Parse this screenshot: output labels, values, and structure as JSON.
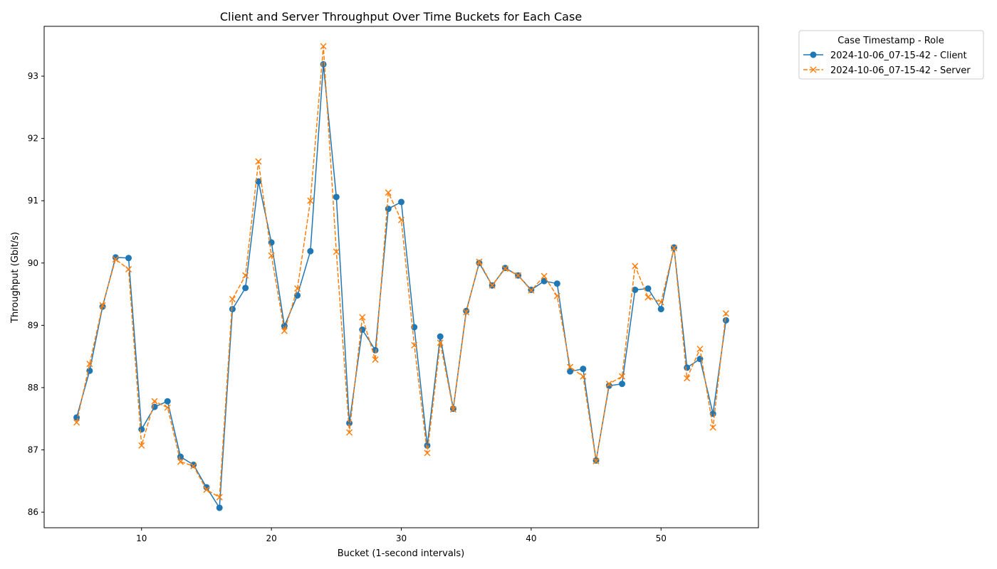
{
  "chart_data": {
    "type": "line",
    "title": "Client and Server Throughput Over Time Buckets for Each Case",
    "xlabel": "Bucket (1-second intervals)",
    "ylabel": "Throughput (Gbit/s)",
    "xlim": [
      2.5,
      57.5
    ],
    "ylim": [
      85.75,
      93.8
    ],
    "xticks": [
      10,
      20,
      30,
      40,
      50
    ],
    "yticks": [
      86,
      87,
      88,
      89,
      90,
      91,
      92,
      93
    ],
    "grid": false,
    "legend": {
      "title": "Case Timestamp - Role",
      "placement": "outside-top-right"
    },
    "x": [
      5,
      6,
      7,
      8,
      9,
      10,
      11,
      12,
      13,
      14,
      15,
      16,
      17,
      18,
      19,
      20,
      21,
      22,
      23,
      24,
      25,
      26,
      27,
      28,
      29,
      30,
      31,
      32,
      33,
      34,
      35,
      36,
      37,
      38,
      39,
      40,
      41,
      42,
      43,
      44,
      45,
      46,
      47,
      48,
      49,
      50,
      51,
      52,
      53,
      54,
      55
    ],
    "series": [
      {
        "name": "2024-10-06_07-15-42 - Client",
        "color": "#1f77b4",
        "line_style": "solid",
        "marker": "circle",
        "values": [
          87.52,
          88.27,
          89.3,
          90.09,
          90.08,
          87.33,
          87.69,
          87.78,
          86.89,
          86.76,
          86.4,
          86.07,
          89.26,
          89.6,
          91.31,
          90.33,
          88.99,
          89.48,
          90.19,
          93.19,
          91.06,
          87.43,
          88.93,
          88.6,
          90.87,
          90.98,
          88.97,
          87.07,
          88.82,
          87.66,
          89.23,
          90.0,
          89.64,
          89.92,
          89.8,
          89.57,
          89.71,
          89.67,
          88.26,
          88.3,
          86.83,
          88.03,
          88.06,
          89.57,
          89.59,
          89.26,
          90.25,
          88.32,
          88.46,
          87.58,
          89.08
        ]
      },
      {
        "name": "2024-10-06_07-15-42 - Server",
        "color": "#ff7f0e",
        "line_style": "dashed",
        "marker": "x",
        "values": [
          87.44,
          88.38,
          89.32,
          90.06,
          89.9,
          87.07,
          87.78,
          87.68,
          86.81,
          86.74,
          86.36,
          86.24,
          89.42,
          89.8,
          91.63,
          90.12,
          88.91,
          89.59,
          91.0,
          93.48,
          90.18,
          87.28,
          89.13,
          88.45,
          91.13,
          90.69,
          88.68,
          86.95,
          88.72,
          87.65,
          89.21,
          90.02,
          89.64,
          89.91,
          89.8,
          89.56,
          89.79,
          89.47,
          88.33,
          88.18,
          86.82,
          88.06,
          88.18,
          89.95,
          89.45,
          89.37,
          90.24,
          88.15,
          88.62,
          87.36,
          89.19
        ]
      }
    ]
  }
}
